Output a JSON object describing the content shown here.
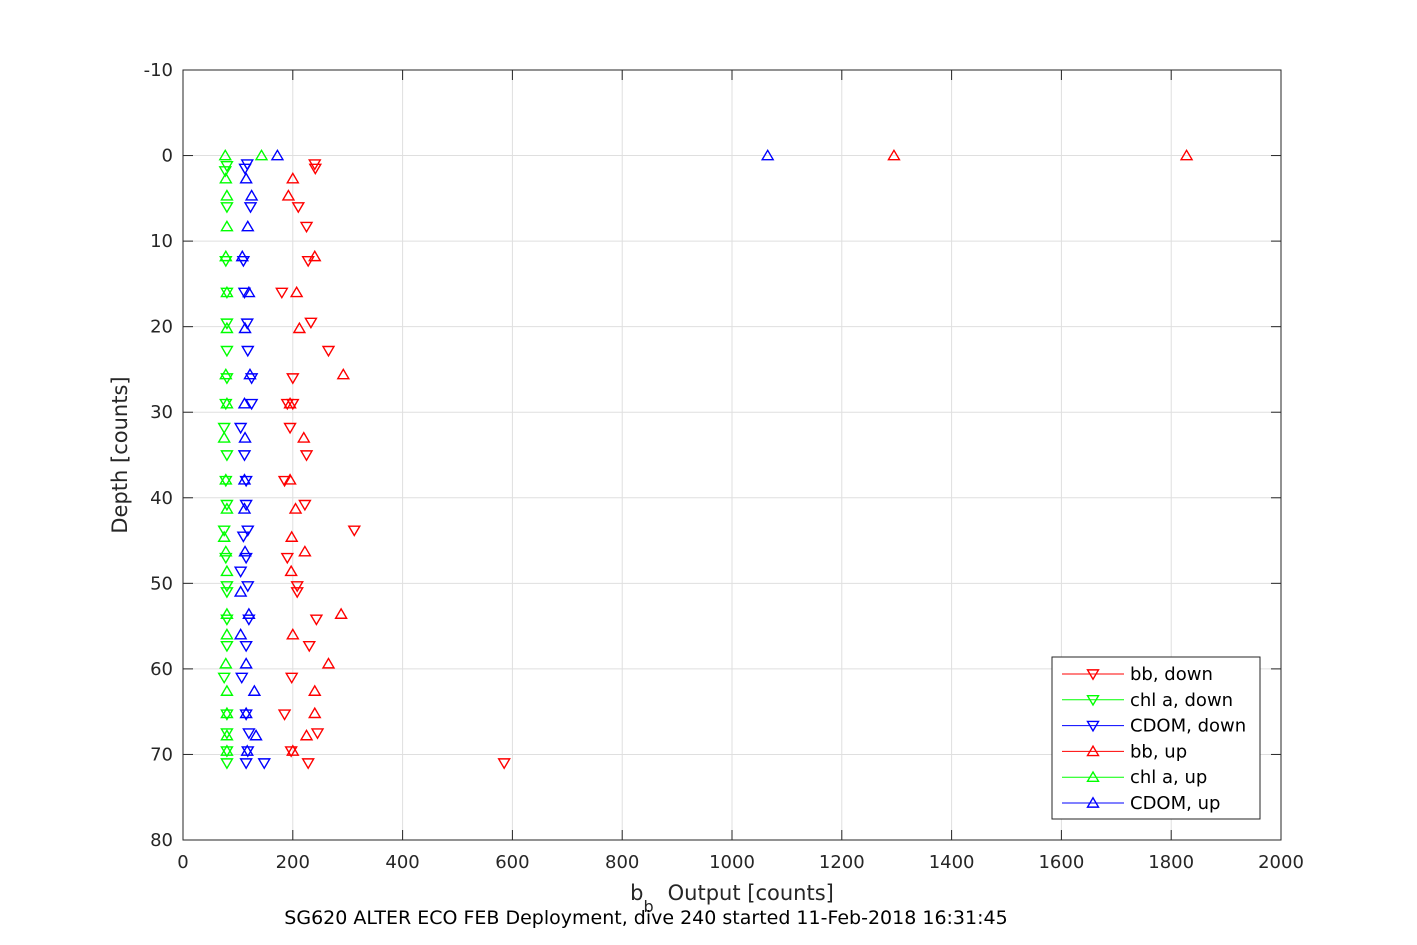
{
  "chart_data": {
    "type": "scatter",
    "xlabel_main": "b",
    "xlabel_sub": "b",
    "xlabel_rest": "Output [counts]",
    "ylabel": "Depth [counts]",
    "caption": "SG620 ALTER ECO FEB Deployment, dive 240 started 11-Feb-2018 16:31:45",
    "xlim": [
      0,
      2000
    ],
    "ylim": [
      -10,
      80
    ],
    "y_reversed": true,
    "grid": true,
    "x_ticks": [
      "0",
      "200",
      "400",
      "600",
      "800",
      "1000",
      "1200",
      "1400",
      "1600",
      "1800",
      "2000"
    ],
    "y_ticks": [
      "-10",
      "0",
      "10",
      "20",
      "30",
      "40",
      "50",
      "60",
      "70",
      "80"
    ],
    "legend_position": "bottom-right",
    "series": [
      {
        "name": "bb, down",
        "color": "#ff0000",
        "marker": "triangle-down",
        "points": [
          [
            240,
            1
          ],
          [
            241,
            1.5
          ],
          [
            210,
            6
          ],
          [
            225,
            8.3
          ],
          [
            228,
            12.3
          ],
          [
            180,
            16
          ],
          [
            233,
            19.5
          ],
          [
            265,
            22.8
          ],
          [
            200,
            26
          ],
          [
            190,
            29
          ],
          [
            200,
            29
          ],
          [
            195,
            31.8
          ],
          [
            225,
            35
          ],
          [
            185,
            38
          ],
          [
            222,
            40.8
          ],
          [
            312,
            43.8
          ],
          [
            190,
            47
          ],
          [
            208,
            50.3
          ],
          [
            208,
            51
          ],
          [
            243,
            54.2
          ],
          [
            230,
            57.3
          ],
          [
            198,
            61
          ],
          [
            185,
            65.3
          ],
          [
            245,
            67.5
          ],
          [
            197,
            69.6
          ],
          [
            228,
            71
          ],
          [
            585,
            71
          ]
        ]
      },
      {
        "name": "chl a, down",
        "color": "#00ff00",
        "marker": "triangle-down",
        "points": [
          [
            80,
            1.2
          ],
          [
            77,
            1.8
          ],
          [
            80,
            6
          ],
          [
            78,
            12.3
          ],
          [
            80,
            16
          ],
          [
            80,
            19.6
          ],
          [
            80,
            22.8
          ],
          [
            80,
            26
          ],
          [
            78,
            29
          ],
          [
            75,
            31.8
          ],
          [
            80,
            35
          ],
          [
            78,
            38
          ],
          [
            80,
            40.8
          ],
          [
            75,
            43.8
          ],
          [
            78,
            47
          ],
          [
            80,
            50.3
          ],
          [
            80,
            51
          ],
          [
            80,
            54.2
          ],
          [
            80,
            57.3
          ],
          [
            75,
            61
          ],
          [
            80,
            65.3
          ],
          [
            80,
            67.5
          ],
          [
            80,
            69.6
          ],
          [
            80,
            71
          ]
        ]
      },
      {
        "name": "CDOM, down",
        "color": "#0000ff",
        "marker": "triangle-down",
        "points": [
          [
            117,
            1
          ],
          [
            113,
            1.5
          ],
          [
            123,
            6
          ],
          [
            110,
            12.3
          ],
          [
            112,
            16
          ],
          [
            117,
            19.6
          ],
          [
            118,
            22.8
          ],
          [
            125,
            26
          ],
          [
            125,
            29
          ],
          [
            105,
            31.8
          ],
          [
            112,
            35
          ],
          [
            115,
            38
          ],
          [
            115,
            40.8
          ],
          [
            118,
            43.8
          ],
          [
            110,
            44.5
          ],
          [
            115,
            47
          ],
          [
            105,
            48.6
          ],
          [
            118,
            50.3
          ],
          [
            120,
            54.2
          ],
          [
            115,
            57.3
          ],
          [
            107,
            61
          ],
          [
            115,
            65.3
          ],
          [
            120,
            67.5
          ],
          [
            118,
            69.6
          ],
          [
            115,
            71
          ],
          [
            148,
            71
          ]
        ]
      },
      {
        "name": "bb, up",
        "color": "#ff0000",
        "marker": "triangle-up",
        "points": [
          [
            1295,
            0
          ],
          [
            1828,
            0
          ],
          [
            200,
            2.7
          ],
          [
            192,
            4.7
          ],
          [
            240,
            11.8
          ],
          [
            207,
            16
          ],
          [
            212,
            20.2
          ],
          [
            292,
            25.6
          ],
          [
            195,
            29
          ],
          [
            220,
            33
          ],
          [
            195,
            37.9
          ],
          [
            205,
            41.3
          ],
          [
            198,
            44.6
          ],
          [
            222,
            46.3
          ],
          [
            197,
            48.6
          ],
          [
            288,
            53.6
          ],
          [
            200,
            56
          ],
          [
            265,
            59.4
          ],
          [
            240,
            62.6
          ],
          [
            240,
            65.2
          ],
          [
            225,
            67.8
          ],
          [
            200,
            69.6
          ]
        ]
      },
      {
        "name": "chl a, up",
        "color": "#00ff00",
        "marker": "triangle-up",
        "points": [
          [
            77,
            0
          ],
          [
            143,
            0
          ],
          [
            78,
            2.7
          ],
          [
            80,
            4.7
          ],
          [
            80,
            8.3
          ],
          [
            78,
            11.8
          ],
          [
            80,
            16
          ],
          [
            80,
            20.2
          ],
          [
            78,
            25.6
          ],
          [
            80,
            29
          ],
          [
            75,
            33
          ],
          [
            78,
            37.9
          ],
          [
            80,
            41.3
          ],
          [
            75,
            44.6
          ],
          [
            78,
            46.3
          ],
          [
            80,
            48.6
          ],
          [
            80,
            53.6
          ],
          [
            80,
            56
          ],
          [
            78,
            59.4
          ],
          [
            80,
            62.6
          ],
          [
            80,
            65.2
          ],
          [
            80,
            67.8
          ],
          [
            80,
            69.6
          ]
        ]
      },
      {
        "name": "CDOM, up",
        "color": "#0000ff",
        "marker": "triangle-up",
        "points": [
          [
            1065,
            0
          ],
          [
            172,
            0
          ],
          [
            115,
            2.7
          ],
          [
            125,
            4.7
          ],
          [
            118,
            8.3
          ],
          [
            108,
            11.8
          ],
          [
            120,
            16
          ],
          [
            113,
            20.2
          ],
          [
            122,
            25.6
          ],
          [
            112,
            29
          ],
          [
            113,
            33
          ],
          [
            112,
            37.9
          ],
          [
            112,
            41.3
          ],
          [
            113,
            46.3
          ],
          [
            105,
            51
          ],
          [
            120,
            53.6
          ],
          [
            105,
            56
          ],
          [
            115,
            59.4
          ],
          [
            130,
            62.6
          ],
          [
            115,
            65.2
          ],
          [
            133,
            67.8
          ],
          [
            117,
            69.6
          ]
        ]
      }
    ]
  }
}
